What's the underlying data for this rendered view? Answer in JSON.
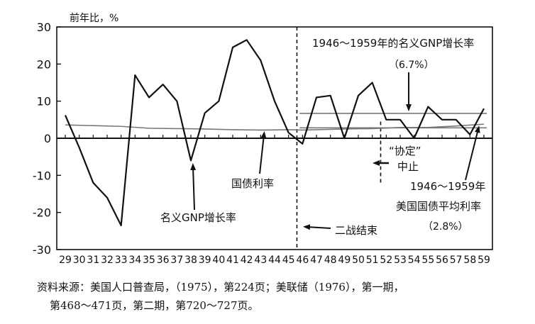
{
  "chart_data": {
    "type": "line",
    "ylabel": "前年比，%",
    "ylim": [
      -30,
      30
    ],
    "yticks": [
      30,
      20,
      10,
      0,
      -10,
      -20,
      -30
    ],
    "x_tick_labels": [
      "29",
      "30",
      "31",
      "32",
      "33",
      "34",
      "35",
      "36",
      "37",
      "38",
      "39",
      "40",
      "41",
      "42",
      "43",
      "44",
      "45",
      "46",
      "47",
      "48",
      "49",
      "50",
      "51",
      "52",
      "53",
      "54",
      "55",
      "56",
      "57",
      "58",
      "59"
    ],
    "xlim": [
      29,
      59
    ],
    "series": [
      {
        "name": "名义GNP增长率",
        "x": [
          29,
          30,
          31,
          32,
          33,
          34,
          35,
          36,
          37,
          38,
          39,
          40,
          41,
          42,
          43,
          44,
          45,
          46,
          47,
          48,
          49,
          50,
          51,
          52,
          53,
          54,
          55,
          56,
          57,
          58,
          59
        ],
        "values": [
          6.2,
          -2.5,
          -12.0,
          -16.0,
          -23.5,
          17.0,
          11.0,
          14.5,
          10.0,
          -6.0,
          6.8,
          10.0,
          24.5,
          26.5,
          21.0,
          10.0,
          1.5,
          -1.5,
          11.0,
          11.5,
          0,
          11.5,
          15.0,
          5.0,
          5.0,
          0,
          8.5,
          5.0,
          5.0,
          1.0,
          8.0
        ]
      },
      {
        "name": "国债利率",
        "x": [
          29,
          31,
          33,
          35,
          37,
          39,
          41,
          43,
          45,
          46,
          47,
          49,
          51,
          53,
          55,
          57,
          59
        ],
        "values": [
          3.6,
          3.4,
          3.2,
          2.7,
          2.6,
          2.5,
          2.3,
          2.2,
          2.3,
          2.2,
          2.3,
          2.5,
          2.6,
          2.9,
          2.9,
          3.3,
          3.8
        ]
      }
    ],
    "reference_lines": [
      {
        "label": "1946～1959年的名义GNP增长率",
        "value_label": "（6.7%）",
        "y": 6.7,
        "x_range": [
          46,
          59
        ]
      },
      {
        "label": "1946～1959年美国国债平均利率",
        "value_label": "（2.8%）",
        "y": 2.8,
        "x_range": [
          46,
          59
        ]
      }
    ],
    "annotations": {
      "gnp_label": "名义GNP增长率",
      "bond_label": "国债利率",
      "ww2_end": "二战结束",
      "accord_line1": "“协定”",
      "accord_line2": "中止",
      "ref_gnp_line1": "1946～1959年的名义GNP增长率",
      "ref_gnp_line2": "（6.7%）",
      "ref_bond_line1": "1946～1959年",
      "ref_bond_line2": "美国国债平均利率",
      "ref_bond_line3": "（2.8%）"
    }
  },
  "source": {
    "line1": "资料来源：美国人口普查局，（1975），第224页；美联储（1976），第一期，",
    "line2": "第468～471页，第二期，第720～727页。"
  }
}
